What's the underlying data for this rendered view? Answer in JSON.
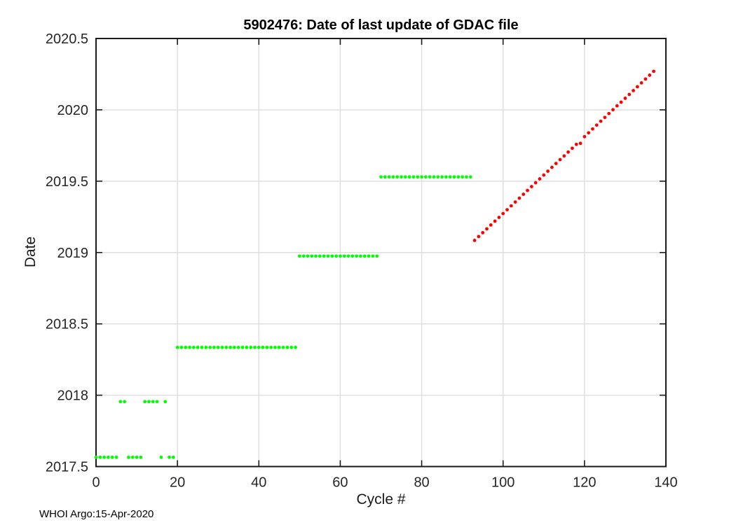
{
  "chart_data": {
    "type": "scatter",
    "title": "5902476: Date of last update of GDAC file",
    "xlabel": "Cycle #",
    "ylabel": "Date",
    "annotation": "WHOI Argo:15-Apr-2020",
    "xlim": [
      0,
      140
    ],
    "ylim": [
      2017.5,
      2020.5
    ],
    "xticks": [
      0,
      20,
      40,
      60,
      80,
      100,
      120,
      140
    ],
    "yticks": [
      2017.5,
      2018,
      2018.5,
      2019,
      2019.5,
      2020,
      2020.5
    ],
    "grid": true,
    "legend": false,
    "background": "#ffffff",
    "grid_color": "#dedede",
    "axis_color": "#1a1a1a",
    "marker": "dot",
    "series": [
      {
        "name": "batch-updated-cycles-green",
        "color": "#00ff00",
        "points": [
          [
            0,
            2017.565
          ],
          [
            1,
            2017.565
          ],
          [
            2,
            2017.565
          ],
          [
            3,
            2017.565
          ],
          [
            4,
            2017.565
          ],
          [
            5,
            2017.565
          ],
          [
            6,
            2017.955
          ],
          [
            7,
            2017.955
          ],
          [
            8,
            2017.565
          ],
          [
            9,
            2017.565
          ],
          [
            10,
            2017.565
          ],
          [
            11,
            2017.565
          ],
          [
            12,
            2017.955
          ],
          [
            13,
            2017.955
          ],
          [
            14,
            2017.955
          ],
          [
            15,
            2017.955
          ],
          [
            16,
            2017.565
          ],
          [
            17,
            2017.955
          ],
          [
            18,
            2017.565
          ],
          [
            19,
            2017.565
          ],
          [
            20,
            2018.335
          ],
          [
            21,
            2018.335
          ],
          [
            22,
            2018.335
          ],
          [
            23,
            2018.335
          ],
          [
            24,
            2018.335
          ],
          [
            25,
            2018.335
          ],
          [
            26,
            2018.335
          ],
          [
            27,
            2018.335
          ],
          [
            28,
            2018.335
          ],
          [
            29,
            2018.335
          ],
          [
            30,
            2018.335
          ],
          [
            31,
            2018.335
          ],
          [
            32,
            2018.335
          ],
          [
            33,
            2018.335
          ],
          [
            34,
            2018.335
          ],
          [
            35,
            2018.335
          ],
          [
            36,
            2018.335
          ],
          [
            37,
            2018.335
          ],
          [
            38,
            2018.335
          ],
          [
            39,
            2018.335
          ],
          [
            40,
            2018.335
          ],
          [
            41,
            2018.335
          ],
          [
            42,
            2018.335
          ],
          [
            43,
            2018.335
          ],
          [
            44,
            2018.335
          ],
          [
            45,
            2018.335
          ],
          [
            46,
            2018.335
          ],
          [
            47,
            2018.335
          ],
          [
            48,
            2018.335
          ],
          [
            49,
            2018.335
          ],
          [
            50,
            2018.975
          ],
          [
            51,
            2018.975
          ],
          [
            52,
            2018.975
          ],
          [
            53,
            2018.975
          ],
          [
            54,
            2018.975
          ],
          [
            55,
            2018.975
          ],
          [
            56,
            2018.975
          ],
          [
            57,
            2018.975
          ],
          [
            58,
            2018.975
          ],
          [
            59,
            2018.975
          ],
          [
            60,
            2018.975
          ],
          [
            61,
            2018.975
          ],
          [
            62,
            2018.975
          ],
          [
            63,
            2018.975
          ],
          [
            64,
            2018.975
          ],
          [
            65,
            2018.975
          ],
          [
            66,
            2018.975
          ],
          [
            67,
            2018.975
          ],
          [
            68,
            2018.975
          ],
          [
            69,
            2018.975
          ],
          [
            70,
            2019.53
          ],
          [
            71,
            2019.53
          ],
          [
            72,
            2019.53
          ],
          [
            73,
            2019.53
          ],
          [
            74,
            2019.53
          ],
          [
            75,
            2019.53
          ],
          [
            76,
            2019.53
          ],
          [
            77,
            2019.53
          ],
          [
            78,
            2019.53
          ],
          [
            79,
            2019.53
          ],
          [
            80,
            2019.53
          ],
          [
            81,
            2019.53
          ],
          [
            82,
            2019.53
          ],
          [
            83,
            2019.53
          ],
          [
            84,
            2019.53
          ],
          [
            85,
            2019.53
          ],
          [
            86,
            2019.53
          ],
          [
            87,
            2019.53
          ],
          [
            88,
            2019.53
          ],
          [
            89,
            2019.53
          ],
          [
            90,
            2019.53
          ],
          [
            91,
            2019.53
          ],
          [
            92,
            2019.53
          ]
        ]
      },
      {
        "name": "recent-updated-cycles-red",
        "color": "#ff0000",
        "points": [
          [
            93,
            2019.085
          ],
          [
            94,
            2019.112
          ],
          [
            95,
            2019.139
          ],
          [
            96,
            2019.166
          ],
          [
            97,
            2019.193
          ],
          [
            98,
            2019.22
          ],
          [
            99,
            2019.246
          ],
          [
            100,
            2019.273
          ],
          [
            101,
            2019.3
          ],
          [
            102,
            2019.327
          ],
          [
            103,
            2019.354
          ],
          [
            104,
            2019.381
          ],
          [
            105,
            2019.408
          ],
          [
            106,
            2019.435
          ],
          [
            107,
            2019.462
          ],
          [
            108,
            2019.489
          ],
          [
            109,
            2019.516
          ],
          [
            110,
            2019.543
          ],
          [
            111,
            2019.57
          ],
          [
            112,
            2019.597
          ],
          [
            113,
            2019.624
          ],
          [
            114,
            2019.651
          ],
          [
            115,
            2019.677
          ],
          [
            116,
            2019.704
          ],
          [
            117,
            2019.731
          ],
          [
            118,
            2019.758
          ],
          [
            119,
            2019.765
          ],
          [
            120,
            2019.812
          ],
          [
            121,
            2019.839
          ],
          [
            122,
            2019.866
          ],
          [
            123,
            2019.893
          ],
          [
            124,
            2019.92
          ],
          [
            125,
            2019.947
          ],
          [
            126,
            2019.974
          ],
          [
            127,
            2020.001
          ],
          [
            128,
            2020.028
          ],
          [
            129,
            2020.054
          ],
          [
            130,
            2020.081
          ],
          [
            131,
            2020.108
          ],
          [
            132,
            2020.135
          ],
          [
            133,
            2020.162
          ],
          [
            134,
            2020.189
          ],
          [
            135,
            2020.216
          ],
          [
            136,
            2020.243
          ],
          [
            137,
            2020.27
          ]
        ]
      }
    ]
  }
}
